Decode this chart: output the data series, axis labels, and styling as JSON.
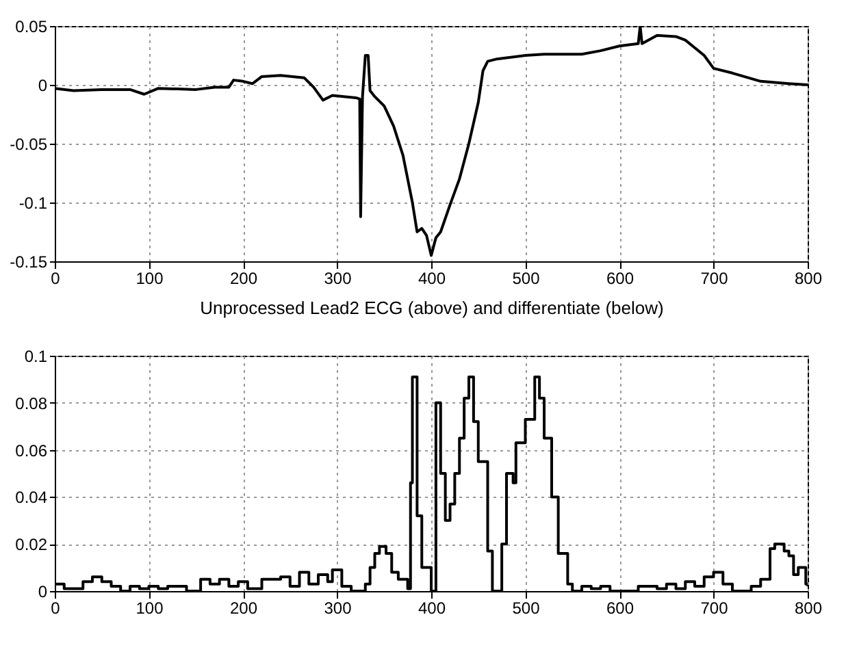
{
  "chart_data": [
    {
      "type": "line",
      "xlabel": "Unprocessed Lead2 ECG (above) and differentiate (below)",
      "color": "#000000",
      "grid": true,
      "xlim": [
        0,
        800
      ],
      "xticks": [
        0,
        100,
        200,
        300,
        400,
        500,
        600,
        700,
        800
      ],
      "ylim": [
        -0.15,
        0.05
      ],
      "yticks": [
        -0.15,
        -0.1,
        -0.05,
        0,
        0.05
      ],
      "x": [
        0,
        20,
        50,
        80,
        95,
        110,
        150,
        170,
        185,
        190,
        200,
        210,
        220,
        240,
        265,
        275,
        285,
        295,
        320,
        324,
        325,
        327,
        330,
        333,
        335,
        340,
        350,
        360,
        370,
        375,
        380,
        385,
        390,
        395,
        400,
        405,
        410,
        420,
        430,
        440,
        450,
        455,
        460,
        470,
        500,
        520,
        560,
        580,
        600,
        620,
        622,
        624,
        640,
        660,
        670,
        690,
        700,
        720,
        750,
        780,
        800
      ],
      "values": [
        -0.003,
        -0.005,
        -0.004,
        -0.004,
        -0.008,
        -0.003,
        -0.004,
        -0.002,
        -0.002,
        0.004,
        0.003,
        0.001,
        0.007,
        0.008,
        0.006,
        -0.002,
        -0.013,
        -0.009,
        -0.011,
        -0.012,
        -0.112,
        -0.01,
        0.025,
        0.025,
        -0.005,
        -0.01,
        -0.018,
        -0.035,
        -0.06,
        -0.08,
        -0.1,
        -0.125,
        -0.122,
        -0.128,
        -0.145,
        -0.13,
        -0.125,
        -0.102,
        -0.08,
        -0.05,
        -0.015,
        0.012,
        0.02,
        0.022,
        0.025,
        0.026,
        0.026,
        0.029,
        0.033,
        0.035,
        0.05,
        0.035,
        0.042,
        0.041,
        0.038,
        0.025,
        0.014,
        0.01,
        0.003,
        0.001,
        0.0
      ]
    },
    {
      "type": "step",
      "color": "#000000",
      "grid": true,
      "xlim": [
        0,
        800
      ],
      "xticks": [
        0,
        100,
        200,
        300,
        400,
        500,
        600,
        700,
        800
      ],
      "ylim": [
        0,
        0.1
      ],
      "yticks": [
        0,
        0.02,
        0.04,
        0.06,
        0.08,
        0.1
      ],
      "x": [
        0,
        10,
        25,
        30,
        40,
        50,
        60,
        70,
        80,
        90,
        100,
        110,
        120,
        140,
        155,
        165,
        175,
        185,
        195,
        205,
        220,
        240,
        250,
        260,
        270,
        280,
        290,
        295,
        305,
        315,
        330,
        335,
        340,
        345,
        352,
        358,
        365,
        375,
        378,
        380,
        385,
        390,
        400,
        405,
        410,
        415,
        420,
        425,
        430,
        435,
        440,
        445,
        450,
        460,
        465,
        475,
        480,
        487,
        490,
        500,
        510,
        515,
        520,
        528,
        535,
        545,
        550,
        560,
        570,
        580,
        590,
        610,
        620,
        640,
        650,
        660,
        670,
        680,
        690,
        700,
        710,
        720,
        740,
        750,
        760,
        765,
        775,
        780,
        785,
        790,
        798,
        800
      ],
      "values": [
        0.003,
        0.001,
        0.001,
        0.004,
        0.006,
        0.004,
        0.002,
        0.0,
        0.002,
        0.001,
        0.002,
        0.001,
        0.002,
        0.0,
        0.005,
        0.003,
        0.005,
        0.002,
        0.004,
        0.001,
        0.005,
        0.006,
        0.002,
        0.008,
        0.003,
        0.007,
        0.004,
        0.009,
        0.002,
        0.0,
        0.003,
        0.01,
        0.016,
        0.019,
        0.016,
        0.008,
        0.005,
        0.001,
        0.046,
        0.091,
        0.032,
        0.01,
        0.0,
        0.08,
        0.05,
        0.03,
        0.037,
        0.05,
        0.065,
        0.082,
        0.091,
        0.072,
        0.055,
        0.017,
        0.0,
        0.02,
        0.05,
        0.046,
        0.063,
        0.073,
        0.091,
        0.082,
        0.065,
        0.04,
        0.016,
        0.003,
        0.0,
        0.002,
        0.001,
        0.002,
        0.0,
        0.0,
        0.002,
        0.001,
        0.003,
        0.001,
        0.004,
        0.002,
        0.006,
        0.008,
        0.003,
        0.0,
        0.002,
        0.005,
        0.018,
        0.02,
        0.017,
        0.015,
        0.007,
        0.01,
        0.003,
        0.002
      ]
    }
  ]
}
